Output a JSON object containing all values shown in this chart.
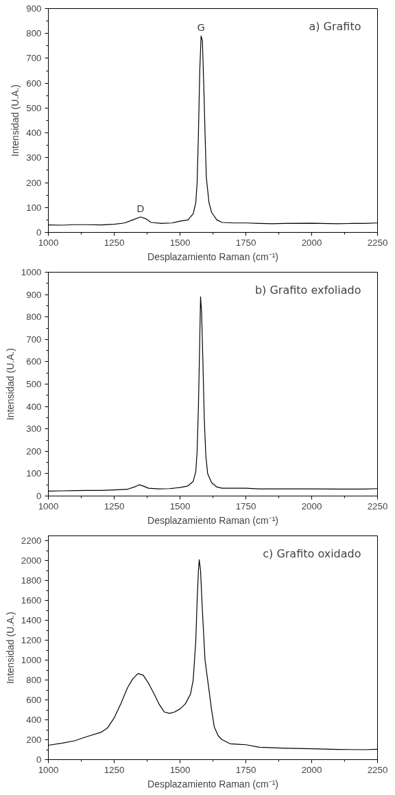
{
  "chart_data": [
    {
      "type": "line",
      "xlabel": "Desplazamiento Raman (cm⁻¹)",
      "ylabel": "Intensidad (U.A.)",
      "xlim": [
        1000,
        2250
      ],
      "xticks": [
        1000,
        1250,
        1500,
        1750,
        2000,
        2250
      ],
      "ylim": [
        0,
        900
      ],
      "yticks": [
        0,
        100,
        200,
        300,
        400,
        500,
        600,
        700,
        800,
        900
      ],
      "grid": false,
      "marker": "none",
      "line_style": "solid",
      "annotations": [
        "a) Grafito",
        {
          "text": "G",
          "x": 1580,
          "y": 790
        },
        {
          "text": "D",
          "x": 1350,
          "y": 62
        }
      ],
      "series": [
        {
          "color": "#000000",
          "x": [
            1000,
            1050,
            1100,
            1150,
            1200,
            1250,
            1290,
            1320,
            1350,
            1370,
            1390,
            1430,
            1470,
            1500,
            1530,
            1550,
            1560,
            1565,
            1570,
            1575,
            1580,
            1585,
            1590,
            1595,
            1600,
            1610,
            1620,
            1640,
            1660,
            1700,
            1750,
            1800,
            1850,
            1900,
            2000,
            2100,
            2150,
            2200,
            2250
          ],
          "values": [
            30,
            29,
            31,
            31,
            30,
            33,
            38,
            50,
            62,
            55,
            40,
            36,
            38,
            45,
            50,
            75,
            120,
            200,
            400,
            650,
            790,
            770,
            600,
            400,
            220,
            120,
            80,
            50,
            40,
            38,
            38,
            36,
            35,
            36,
            37,
            35,
            36,
            36,
            38
          ]
        }
      ]
    },
    {
      "type": "line",
      "xlabel": "Desplazamiento Raman (cm⁻¹)",
      "ylabel": "Intensidad (U.A.)",
      "xlim": [
        1000,
        2250
      ],
      "xticks": [
        1000,
        1250,
        1500,
        1750,
        2000,
        2250
      ],
      "ylim": [
        0,
        1000
      ],
      "yticks": [
        0,
        100,
        200,
        300,
        400,
        500,
        600,
        700,
        800,
        900,
        1000
      ],
      "grid": false,
      "marker": "none",
      "line_style": "solid",
      "annotations": [
        "b) Grafito exfoliado"
      ],
      "series": [
        {
          "color": "#000000",
          "x": [
            1000,
            1050,
            1100,
            1150,
            1200,
            1250,
            1300,
            1330,
            1345,
            1360,
            1380,
            1420,
            1460,
            1500,
            1530,
            1550,
            1560,
            1565,
            1570,
            1575,
            1578,
            1582,
            1587,
            1592,
            1598,
            1605,
            1620,
            1640,
            1660,
            1700,
            1750,
            1800,
            1900,
            2000,
            2100,
            2200,
            2250
          ],
          "values": [
            22,
            23,
            24,
            25,
            25,
            27,
            30,
            42,
            50,
            45,
            35,
            32,
            33,
            38,
            45,
            65,
            110,
            200,
            400,
            700,
            890,
            820,
            600,
            350,
            180,
            100,
            60,
            40,
            35,
            35,
            35,
            32,
            32,
            32,
            31,
            31,
            33
          ]
        }
      ]
    },
    {
      "type": "line",
      "xlabel": "Desplazamiento Raman (cm⁻¹)",
      "ylabel": "Intensidad (U.A.)",
      "xlim": [
        1000,
        2250
      ],
      "xticks": [
        1000,
        1250,
        1500,
        1750,
        2000,
        2250
      ],
      "ylim": [
        0,
        2250
      ],
      "yticks": [
        0,
        200,
        400,
        600,
        800,
        1000,
        1200,
        1400,
        1600,
        1800,
        2000,
        2200
      ],
      "grid": false,
      "marker": "none",
      "line_style": "solid",
      "annotations": [
        "c) Grafito oxidado"
      ],
      "series": [
        {
          "color": "#000000",
          "x": [
            1000,
            1050,
            1100,
            1150,
            1200,
            1225,
            1250,
            1275,
            1300,
            1320,
            1340,
            1360,
            1380,
            1400,
            1420,
            1440,
            1460,
            1480,
            1500,
            1520,
            1540,
            1550,
            1560,
            1565,
            1570,
            1573,
            1578,
            1585,
            1595,
            1610,
            1620,
            1630,
            1645,
            1660,
            1690,
            1720,
            1750,
            1800,
            1850,
            1900,
            2000,
            2100,
            2200,
            2250
          ],
          "values": [
            145,
            165,
            190,
            235,
            275,
            320,
            420,
            560,
            720,
            810,
            865,
            850,
            770,
            670,
            560,
            480,
            465,
            480,
            510,
            560,
            660,
            800,
            1200,
            1600,
            1900,
            2010,
            1900,
            1500,
            1000,
            700,
            500,
            330,
            240,
            200,
            160,
            155,
            150,
            125,
            120,
            115,
            110,
            103,
            100,
            105
          ]
        }
      ]
    }
  ]
}
